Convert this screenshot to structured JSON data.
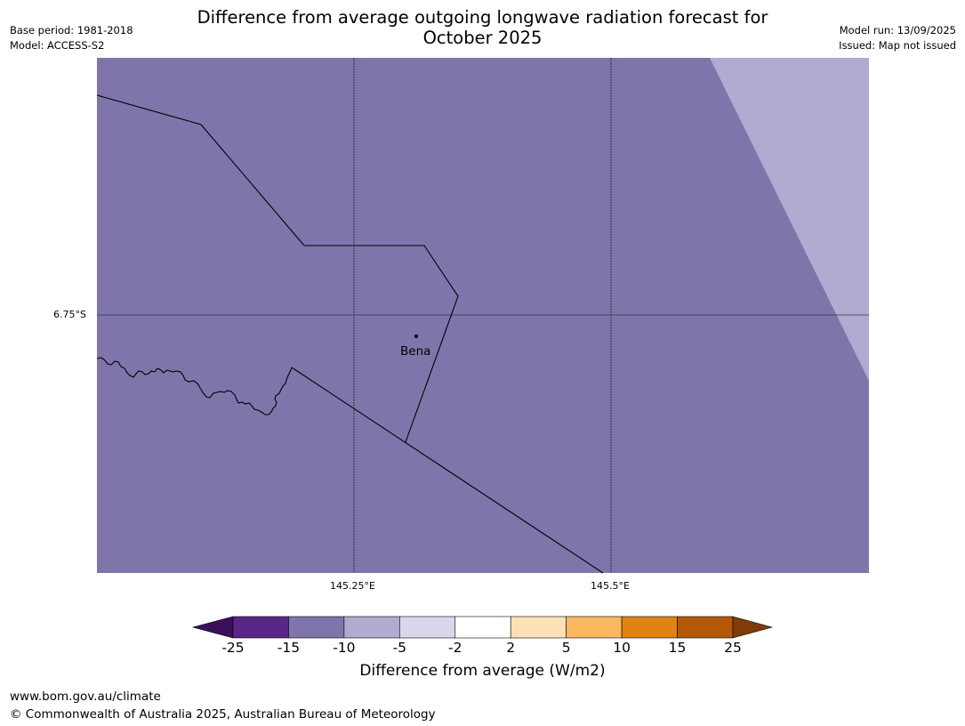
{
  "header": {
    "title_line1": "Difference from average outgoing longwave radiation forecast for",
    "title_line2": "October 2025",
    "base_period": "Base period: 1981-2018",
    "model": "Model: ACCESS-S2",
    "model_run": "Model run: 13/09/2025",
    "issued": "Issued: Map not issued"
  },
  "map": {
    "lat_labels": [
      "6.75°S"
    ],
    "lon_labels": [
      "145.25°E",
      "145.5°E"
    ],
    "place_name": "Bena",
    "colors": {
      "main_fill": "#8075ab",
      "lighter_fill": "#b1aad1",
      "border_line": "#000000"
    }
  },
  "colorbar": {
    "ticks": [
      "-25",
      "-15",
      "-10",
      "-5",
      "-2",
      "2",
      "5",
      "10",
      "15",
      "25"
    ],
    "colors": [
      "#3b0f5c",
      "#5a2788",
      "#8075ab",
      "#b1aad1",
      "#d9d8ea",
      "#ffffff",
      "#fee0b6",
      "#fbb660",
      "#e08214",
      "#b35806",
      "#7f3b08"
    ],
    "label": "Difference from average (W/m2)"
  },
  "footer": {
    "url": "www.bom.gov.au/climate",
    "copyright": "© Commonwealth of Australia 2025, Australian Bureau of Meteorology"
  }
}
